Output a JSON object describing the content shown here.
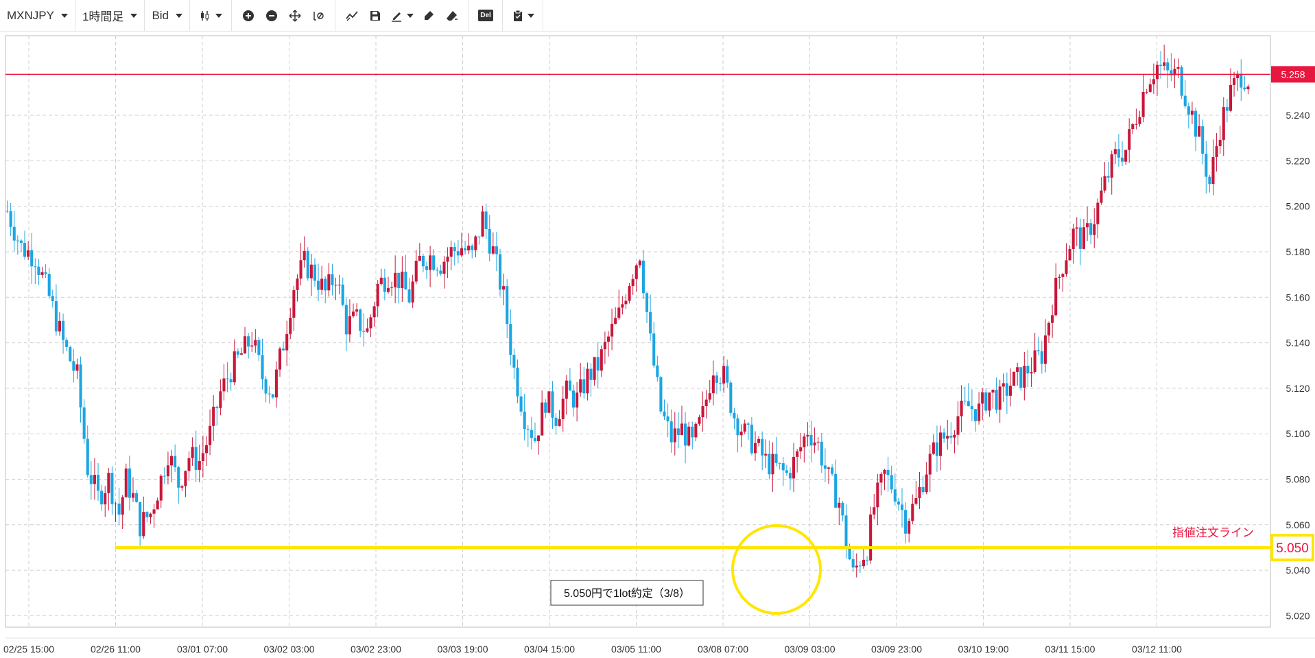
{
  "toolbar": {
    "symbol": "MXNJPY",
    "timeframe": "1時間足",
    "price_type": "Bid",
    "del_label": "Del",
    "icons": [
      "candle-type-icon",
      "zoom-in-icon",
      "zoom-out-icon",
      "move-icon",
      "indicator-icon",
      "drawing-line-icon",
      "save-icon",
      "pen-icon",
      "marker-icon",
      "eraser-icon",
      "delete-icon",
      "clipboard-icon"
    ]
  },
  "colors": {
    "up": "#c8173a",
    "down": "#1ba5e3",
    "current_price_line": "#e8173f",
    "order_line": "#ffe600",
    "annotation_text": "#e8173f",
    "grid": "#cfcfcf"
  },
  "chart_data": {
    "type": "candlestick",
    "symbol": "MXNJPY",
    "timeframe": "1時間足",
    "ylim": [
      5.015,
      5.275
    ],
    "y_ticks": [
      "5.020",
      "5.040",
      "5.060",
      "5.080",
      "5.100",
      "5.120",
      "5.140",
      "5.160",
      "5.180",
      "5.200",
      "5.220",
      "5.240"
    ],
    "x_tick_labels": [
      "02/25 15:00",
      "02/26 11:00",
      "03/01 07:00",
      "03/02 03:00",
      "03/02 23:00",
      "03/03 19:00",
      "03/04 15:00",
      "03/05 11:00",
      "03/08 07:00",
      "03/09 03:00",
      "03/09 23:00",
      "03/10 19:00",
      "03/11 15:00",
      "03/12 11:00"
    ],
    "grid": true,
    "current_price": {
      "value": 5.258,
      "label": "5.258"
    },
    "order_line": {
      "value": 5.05,
      "label": "5.050",
      "caption": "指値注文ライン"
    },
    "annotation": {
      "text": "5.050円で1lot約定（3/8）"
    },
    "series_close_path": [
      [
        0,
        5.198
      ],
      [
        4,
        5.182
      ],
      [
        8,
        5.178
      ],
      [
        12,
        5.16
      ],
      [
        16,
        5.14
      ],
      [
        20,
        5.125
      ],
      [
        23,
        5.085
      ],
      [
        26,
        5.072
      ],
      [
        29,
        5.08
      ],
      [
        32,
        5.065
      ],
      [
        34,
        5.08
      ],
      [
        36,
        5.072
      ],
      [
        38,
        5.06
      ],
      [
        41,
        5.065
      ],
      [
        44,
        5.08
      ],
      [
        46,
        5.092
      ],
      [
        49,
        5.078
      ],
      [
        52,
        5.09
      ],
      [
        55,
        5.088
      ],
      [
        58,
        5.1
      ],
      [
        61,
        5.118
      ],
      [
        64,
        5.128
      ],
      [
        67,
        5.135
      ],
      [
        70,
        5.142
      ],
      [
        73,
        5.125
      ],
      [
        76,
        5.118
      ],
      [
        79,
        5.14
      ],
      [
        82,
        5.165
      ],
      [
        85,
        5.175
      ],
      [
        88,
        5.17
      ],
      [
        91,
        5.162
      ],
      [
        94,
        5.17
      ],
      [
        97,
        5.148
      ],
      [
        100,
        5.15
      ],
      [
        103,
        5.145
      ],
      [
        106,
        5.165
      ],
      [
        109,
        5.17
      ],
      [
        112,
        5.168
      ],
      [
        115,
        5.16
      ],
      [
        118,
        5.176
      ],
      [
        121,
        5.178
      ],
      [
        124,
        5.175
      ],
      [
        127,
        5.18
      ],
      [
        130,
        5.182
      ],
      [
        133,
        5.178
      ],
      [
        136,
        5.195
      ],
      [
        139,
        5.18
      ],
      [
        142,
        5.16
      ],
      [
        145,
        5.128
      ],
      [
        148,
        5.108
      ],
      [
        151,
        5.098
      ],
      [
        154,
        5.115
      ],
      [
        157,
        5.108
      ],
      [
        160,
        5.118
      ],
      [
        163,
        5.115
      ],
      [
        166,
        5.125
      ],
      [
        169,
        5.13
      ],
      [
        172,
        5.142
      ],
      [
        175,
        5.152
      ],
      [
        178,
        5.168
      ],
      [
        181,
        5.18
      ],
      [
        184,
        5.14
      ],
      [
        187,
        5.11
      ],
      [
        190,
        5.098
      ],
      [
        193,
        5.102
      ],
      [
        196,
        5.095
      ],
      [
        199,
        5.108
      ],
      [
        202,
        5.13
      ],
      [
        205,
        5.125
      ],
      [
        208,
        5.108
      ],
      [
        211,
        5.1
      ],
      [
        214,
        5.095
      ],
      [
        217,
        5.088
      ],
      [
        220,
        5.085
      ],
      [
        223,
        5.082
      ],
      [
        226,
        5.09
      ],
      [
        229,
        5.102
      ],
      [
        232,
        5.095
      ],
      [
        235,
        5.08
      ],
      [
        238,
        5.07
      ],
      [
        240,
        5.052
      ],
      [
        242,
        5.038
      ],
      [
        244,
        5.045
      ],
      [
        246,
        5.05
      ],
      [
        248,
        5.068
      ],
      [
        251,
        5.082
      ],
      [
        254,
        5.075
      ],
      [
        257,
        5.062
      ],
      [
        260,
        5.07
      ],
      [
        263,
        5.085
      ],
      [
        266,
        5.095
      ],
      [
        269,
        5.1
      ],
      [
        272,
        5.108
      ],
      [
        275,
        5.112
      ],
      [
        278,
        5.11
      ],
      [
        281,
        5.118
      ],
      [
        284,
        5.115
      ],
      [
        287,
        5.122
      ],
      [
        290,
        5.125
      ],
      [
        293,
        5.13
      ],
      [
        296,
        5.135
      ],
      [
        299,
        5.158
      ],
      [
        302,
        5.175
      ],
      [
        305,
        5.188
      ],
      [
        308,
        5.185
      ],
      [
        311,
        5.195
      ],
      [
        314,
        5.21
      ],
      [
        317,
        5.222
      ],
      [
        320,
        5.225
      ],
      [
        323,
        5.24
      ],
      [
        326,
        5.255
      ],
      [
        329,
        5.262
      ],
      [
        332,
        5.258
      ],
      [
        335,
        5.258
      ],
      [
        338,
        5.245
      ],
      [
        341,
        5.23
      ],
      [
        344,
        5.21
      ],
      [
        347,
        5.235
      ],
      [
        350,
        5.25
      ],
      [
        353,
        5.258
      ],
      [
        355,
        5.256
      ]
    ]
  }
}
